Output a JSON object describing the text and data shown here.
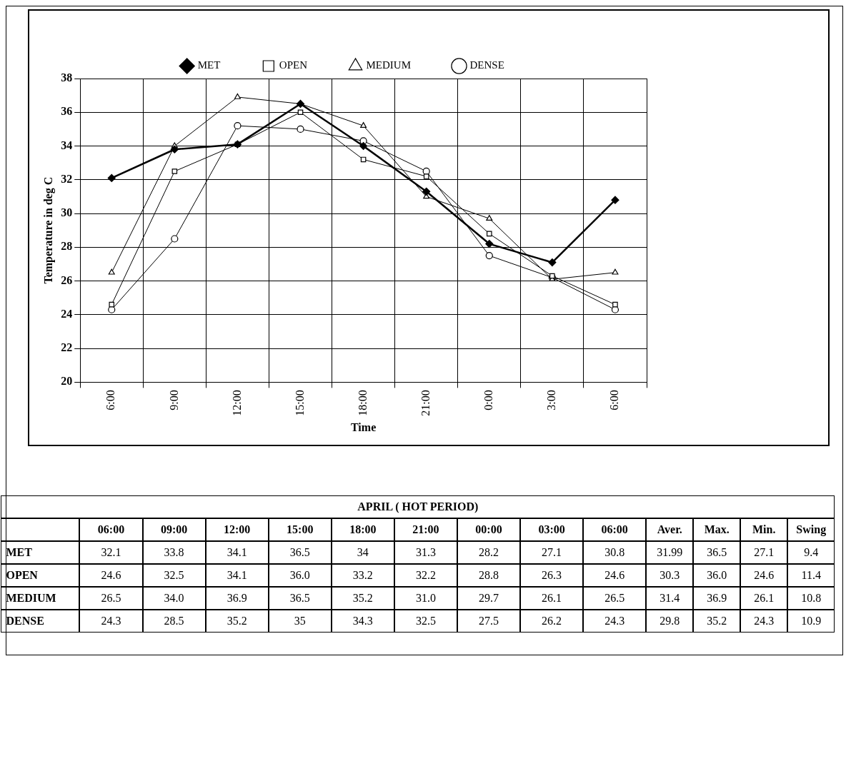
{
  "chart_data": [
    {
      "type": "line",
      "xlabel": "Time",
      "ylabel": "Temperature in deg C",
      "categories": [
        "6:00",
        "9:00",
        "12:00",
        "15:00",
        "18:00",
        "21:00",
        "0:00",
        "3:00",
        "6:00"
      ],
      "ylim": [
        20,
        38
      ],
      "yticks": [
        20,
        22,
        24,
        26,
        28,
        30,
        32,
        34,
        36,
        38
      ],
      "grid": true,
      "legend": "top",
      "annotations": [
        "APRIL ( HOT PERIOD)",
        "06:00",
        "09:00",
        "12:00",
        "15:00",
        "18:00",
        "21:00",
        "00:00",
        "03:00",
        "06:00"
      ],
      "series": [
        {
          "name": "MET",
          "color": "#000000",
          "marker": "diamond",
          "values": [
            32.1,
            33.8,
            34.1,
            36.5,
            34,
            31.3,
            28.2,
            27.1,
            30.8
          ],
          "value_labels": [
            "32.1",
            "33.8",
            "34.1",
            "36.5",
            "34",
            "31.3",
            "28.2",
            "27.1",
            "30.8"
          ]
        },
        {
          "name": "OPEN",
          "color": "#000000",
          "marker": "square",
          "values": [
            24.6,
            32.5,
            34.1,
            36.0,
            33.2,
            32.2,
            28.8,
            26.3,
            24.6
          ],
          "value_labels": [
            "24.6",
            "32.5",
            "34.1",
            "36.0",
            "33.2",
            "32.2",
            "28.8",
            "26.3",
            "24.6"
          ]
        },
        {
          "name": "MEDIUM",
          "color": "#000000",
          "marker": "triangle",
          "values": [
            26.5,
            34.0,
            36.9,
            36.5,
            35.2,
            31.0,
            29.7,
            26.1,
            26.5
          ],
          "value_labels": [
            "26.5",
            "34.0",
            "36.9",
            "36.5",
            "35.2",
            "31.0",
            "29.7",
            "26.1",
            "26.5"
          ]
        },
        {
          "name": "DENSE",
          "color": "#000000",
          "marker": "circle",
          "values": [
            24.3,
            28.5,
            35.2,
            35,
            34.3,
            32.5,
            27.5,
            26.2,
            24.3
          ],
          "value_labels": [
            "24.3",
            "28.5",
            "35.2",
            "35",
            "34.3",
            "32.5",
            "27.5",
            "26.2",
            "24.3"
          ]
        }
      ]
    },
    {
      "type": "other",
      "categories": [
        "Aver.",
        "Max.",
        "Min.",
        "Swing"
      ],
      "series": [
        {
          "values": [
            31.99,
            36.5,
            27.1,
            9.4
          ],
          "value_labels": [
            "31.99",
            "36.5",
            "27.1",
            "9.4"
          ]
        },
        {
          "values": [
            30.3,
            36.0,
            24.6,
            11.4
          ],
          "value_labels": [
            "30.3",
            "36.0",
            "24.6",
            "11.4"
          ]
        },
        {
          "values": [
            31.4,
            36.9,
            26.1,
            10.8
          ],
          "value_labels": [
            "31.4",
            "36.9",
            "26.1",
            "10.8"
          ]
        },
        {
          "values": [
            29.8,
            35.2,
            24.3,
            10.9
          ],
          "value_labels": [
            "29.8",
            "35.2",
            "24.3",
            "10.9"
          ]
        }
      ]
    }
  ]
}
